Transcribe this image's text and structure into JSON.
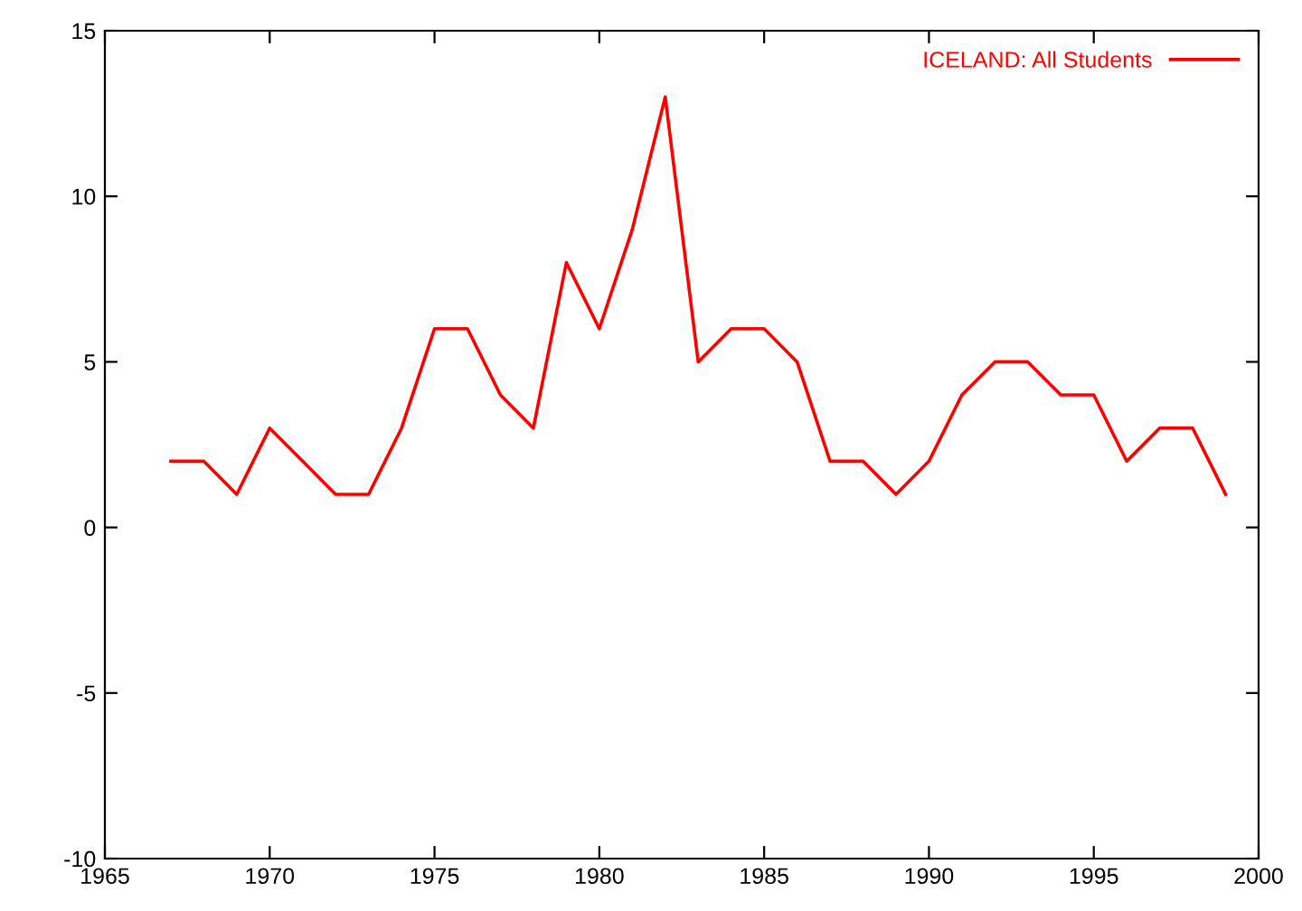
{
  "chart_data": {
    "type": "line",
    "x": [
      1967,
      1968,
      1969,
      1970,
      1971,
      1972,
      1973,
      1974,
      1975,
      1976,
      1977,
      1978,
      1979,
      1980,
      1981,
      1982,
      1983,
      1984,
      1985,
      1986,
      1987,
      1988,
      1989,
      1990,
      1991,
      1992,
      1993,
      1994,
      1995,
      1996,
      1997,
      1998,
      1999
    ],
    "series": [
      {
        "name": "ICELAND: All Students",
        "color": "#ff0000",
        "values": [
          2,
          2,
          1,
          3,
          2,
          1,
          1,
          3,
          6,
          6,
          4,
          3,
          8,
          6,
          9,
          13,
          5,
          6,
          6,
          5,
          2,
          2,
          1,
          2,
          4,
          5,
          5,
          4,
          4,
          2,
          3,
          3,
          1
        ]
      }
    ],
    "xlim": [
      1965,
      2000
    ],
    "xticks": [
      1965,
      1970,
      1975,
      1980,
      1985,
      1990,
      1995,
      2000
    ],
    "ylim": [
      -10,
      15
    ],
    "yticks": [
      -10,
      -5,
      0,
      5,
      10,
      15
    ],
    "grid": false,
    "legend": "top right",
    "marker": "none",
    "line_style": "solid"
  }
}
